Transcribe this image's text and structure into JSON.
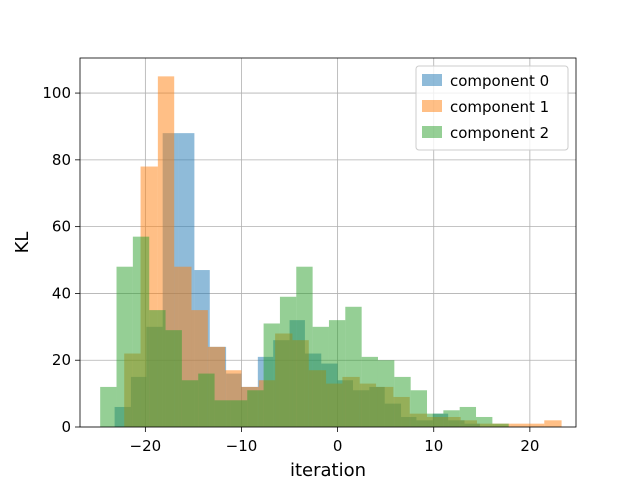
{
  "chart_data": {
    "type": "histogram",
    "title": "",
    "xlabel": "iteration",
    "ylabel": "KL",
    "xlim": [
      -26.8,
      24.8
    ],
    "ylim": [
      0,
      110.5
    ],
    "xticks": [
      -20,
      -10,
      0,
      10,
      20
    ],
    "yticks": [
      0,
      20,
      40,
      60,
      80,
      100
    ],
    "grid": true,
    "legend_position": "upper-right",
    "series": [
      {
        "name": "component 0",
        "color": "#1f77b4",
        "bins": [
          [
            -23.2,
            -21.5,
            6
          ],
          [
            -21.5,
            -19.9,
            15
          ],
          [
            -19.9,
            -18.2,
            30
          ],
          [
            -18.2,
            -16.6,
            88
          ],
          [
            -16.6,
            -14.9,
            88
          ],
          [
            -14.9,
            -13.3,
            47
          ],
          [
            -13.3,
            -11.6,
            24
          ],
          [
            -11.6,
            -10.0,
            16
          ],
          [
            -10.0,
            -8.3,
            12
          ],
          [
            -8.3,
            -6.7,
            21
          ],
          [
            -6.7,
            -5.0,
            26
          ],
          [
            -5.0,
            -3.4,
            32
          ],
          [
            -3.4,
            -1.7,
            22
          ],
          [
            -1.7,
            0.0,
            19
          ],
          [
            0.0,
            1.6,
            14
          ],
          [
            1.6,
            3.3,
            11
          ],
          [
            3.3,
            4.9,
            12
          ],
          [
            4.9,
            6.6,
            7
          ],
          [
            6.6,
            8.2,
            3
          ],
          [
            8.2,
            9.9,
            2
          ],
          [
            9.9,
            11.5,
            4
          ],
          [
            11.5,
            13.2,
            2
          ],
          [
            13.2,
            14.8,
            1
          ]
        ]
      },
      {
        "name": "component 1",
        "color": "#ff7f0e",
        "bins": [
          [
            -22.2,
            -20.5,
            22
          ],
          [
            -20.5,
            -18.7,
            78
          ],
          [
            -18.7,
            -17.0,
            105
          ],
          [
            -17.0,
            -15.2,
            48
          ],
          [
            -15.2,
            -13.5,
            35
          ],
          [
            -13.5,
            -11.7,
            24
          ],
          [
            -11.7,
            -10.0,
            17
          ],
          [
            -10.0,
            -8.2,
            12
          ],
          [
            -8.2,
            -6.5,
            14
          ],
          [
            -6.5,
            -4.7,
            28
          ],
          [
            -4.7,
            -3.0,
            26
          ],
          [
            -3.0,
            -1.2,
            17
          ],
          [
            -1.2,
            0.5,
            13
          ],
          [
            0.5,
            2.3,
            15
          ],
          [
            2.3,
            4.0,
            13
          ],
          [
            4.0,
            5.8,
            12
          ],
          [
            5.8,
            7.5,
            9
          ],
          [
            7.5,
            9.3,
            4
          ],
          [
            9.3,
            11.0,
            3
          ],
          [
            11.0,
            12.8,
            3
          ],
          [
            12.8,
            14.5,
            2
          ],
          [
            14.5,
            16.3,
            1
          ],
          [
            16.3,
            18.0,
            1
          ],
          [
            18.0,
            19.8,
            1
          ],
          [
            19.8,
            21.5,
            1
          ],
          [
            21.5,
            23.3,
            2
          ]
        ]
      },
      {
        "name": "component 2",
        "color": "#2ca02c",
        "bins": [
          [
            -24.7,
            -23.0,
            12
          ],
          [
            -23.0,
            -21.3,
            48
          ],
          [
            -21.3,
            -19.6,
            57
          ],
          [
            -19.6,
            -17.9,
            35
          ],
          [
            -17.9,
            -16.2,
            29
          ],
          [
            -16.2,
            -14.5,
            14
          ],
          [
            -14.5,
            -12.8,
            16
          ],
          [
            -12.8,
            -11.1,
            8
          ],
          [
            -11.1,
            -9.4,
            8
          ],
          [
            -9.4,
            -7.7,
            11
          ],
          [
            -7.7,
            -6.0,
            31
          ],
          [
            -6.0,
            -4.3,
            39
          ],
          [
            -4.3,
            -2.6,
            48
          ],
          [
            -2.6,
            -0.9,
            30
          ],
          [
            -0.9,
            0.8,
            32
          ],
          [
            0.8,
            2.5,
            36
          ],
          [
            2.5,
            4.2,
            21
          ],
          [
            4.2,
            5.9,
            20
          ],
          [
            5.9,
            7.6,
            15
          ],
          [
            7.6,
            9.3,
            11
          ],
          [
            9.3,
            11.0,
            4
          ],
          [
            11.0,
            12.7,
            5
          ],
          [
            12.7,
            14.4,
            6
          ],
          [
            14.4,
            16.1,
            3
          ],
          [
            16.1,
            17.8,
            1
          ]
        ]
      }
    ]
  }
}
